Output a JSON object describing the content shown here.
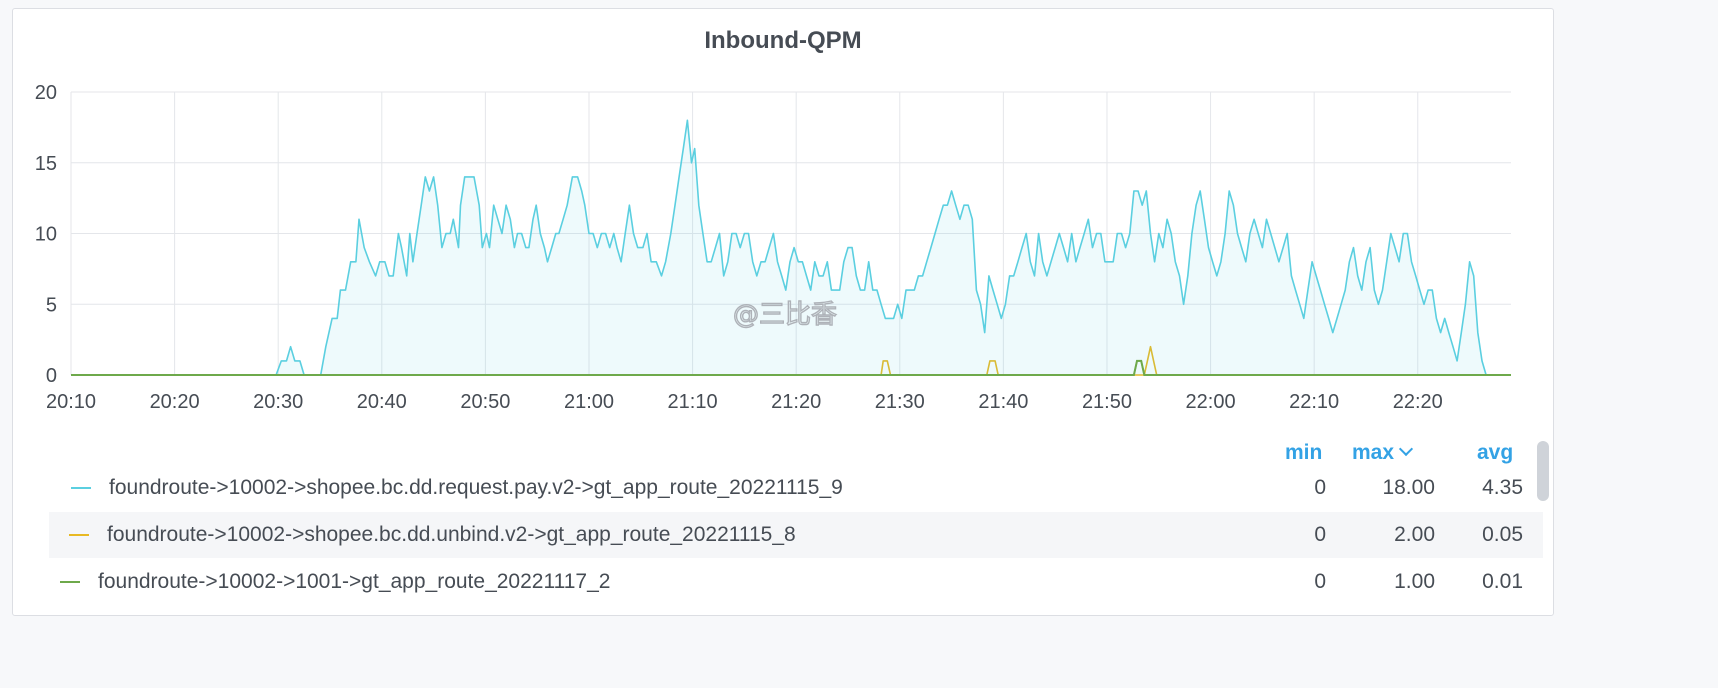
{
  "panel": {
    "title": "Inbound-QPM",
    "watermark": "@三比香"
  },
  "legend": {
    "headers": {
      "min": "min",
      "max": "max",
      "avg": "avg"
    },
    "rows": [
      {
        "name": "foundroute->10002->shopee.bc.dd.request.pay.v2->gt_app_route_20221115_9",
        "color": "#5bcfe0",
        "min": "0",
        "max": "18.00",
        "avg": "4.35"
      },
      {
        "name": "foundroute->10002->shopee.bc.dd.unbind.v2->gt_app_route_20221115_8",
        "color": "#e8b923",
        "min": "0",
        "max": "2.00",
        "avg": "0.05"
      },
      {
        "name": "foundroute->10002->1001->gt_app_route_20221117_2",
        "color": "#6ea94b",
        "min": "0",
        "max": "1.00",
        "avg": "0.01"
      }
    ]
  },
  "chart_data": {
    "type": "area",
    "title": "Inbound-QPM",
    "x_unit": "minutes since 20:10",
    "xlim": [
      0,
      139
    ],
    "ylim": [
      0,
      20
    ],
    "yticks": [
      0,
      5,
      10,
      15,
      20
    ],
    "xticks": [
      "20:10",
      "20:20",
      "20:30",
      "20:40",
      "20:50",
      "21:00",
      "21:10",
      "21:20",
      "21:30",
      "21:40",
      "21:50",
      "22:00",
      "22:10",
      "22:20"
    ],
    "grid": true,
    "series": [
      {
        "name": "foundroute->10002->shopee.bc.dd.request.pay.v2->gt_app_route_20221115_9",
        "color": "#5bcfe0",
        "fill": true,
        "points": [
          [
            0,
            0
          ],
          [
            19.8,
            0
          ],
          [
            20.3,
            1
          ],
          [
            20.8,
            1
          ],
          [
            21.2,
            2
          ],
          [
            21.6,
            1
          ],
          [
            22.1,
            1
          ],
          [
            22.5,
            0
          ],
          [
            24,
            0
          ],
          [
            24.1,
            0
          ],
          [
            24.6,
            2
          ],
          [
            25.2,
            4
          ],
          [
            25.7,
            4
          ],
          [
            26,
            6
          ],
          [
            26.5,
            6
          ],
          [
            27,
            8
          ],
          [
            27.5,
            8
          ],
          [
            27.8,
            11
          ],
          [
            28.3,
            9
          ],
          [
            28.8,
            8
          ],
          [
            29.4,
            7
          ],
          [
            29.8,
            8
          ],
          [
            30.3,
            8
          ],
          [
            30.7,
            7
          ],
          [
            31.1,
            7
          ],
          [
            31.6,
            10
          ],
          [
            31.9,
            9
          ],
          [
            32.4,
            7
          ],
          [
            32.7,
            10
          ],
          [
            33,
            8
          ],
          [
            33.4,
            10
          ],
          [
            33.8,
            12
          ],
          [
            34.2,
            14
          ],
          [
            34.6,
            13
          ],
          [
            35,
            14
          ],
          [
            35.4,
            12
          ],
          [
            35.8,
            9
          ],
          [
            36.2,
            10
          ],
          [
            36.6,
            10
          ],
          [
            36.9,
            11
          ],
          [
            37.4,
            9
          ],
          [
            37.6,
            12
          ],
          [
            38,
            14
          ],
          [
            38.5,
            14
          ],
          [
            38.9,
            14
          ],
          [
            39.4,
            12
          ],
          [
            39.7,
            9
          ],
          [
            40.1,
            10
          ],
          [
            40.4,
            9
          ],
          [
            40.8,
            12
          ],
          [
            41.2,
            11
          ],
          [
            41.6,
            10
          ],
          [
            42,
            12
          ],
          [
            42.4,
            11
          ],
          [
            42.8,
            9
          ],
          [
            43.1,
            10
          ],
          [
            43.5,
            10
          ],
          [
            43.9,
            9
          ],
          [
            44.2,
            9
          ],
          [
            44.6,
            11
          ],
          [
            44.9,
            12
          ],
          [
            45.3,
            10
          ],
          [
            45.7,
            9
          ],
          [
            46,
            8
          ],
          [
            46.4,
            9
          ],
          [
            46.8,
            10
          ],
          [
            47.1,
            10
          ],
          [
            47.5,
            11
          ],
          [
            47.9,
            12
          ],
          [
            48.4,
            14
          ],
          [
            48.9,
            14
          ],
          [
            49.3,
            13
          ],
          [
            49.6,
            12
          ],
          [
            50,
            10
          ],
          [
            50.4,
            10
          ],
          [
            50.8,
            9
          ],
          [
            51.2,
            10
          ],
          [
            51.6,
            10
          ],
          [
            52,
            9
          ],
          [
            52.4,
            10
          ],
          [
            52.7,
            9
          ],
          [
            53.1,
            8
          ],
          [
            53.5,
            10
          ],
          [
            53.9,
            12
          ],
          [
            54.3,
            10
          ],
          [
            54.7,
            9
          ],
          [
            55.2,
            9
          ],
          [
            55.6,
            10
          ],
          [
            56,
            8
          ],
          [
            56.5,
            8
          ],
          [
            57,
            7
          ],
          [
            57.4,
            8
          ],
          [
            57.9,
            10
          ],
          [
            58.3,
            12
          ],
          [
            58.7,
            14
          ],
          [
            59.1,
            16
          ],
          [
            59.5,
            18
          ],
          [
            59.9,
            15
          ],
          [
            60.2,
            16
          ],
          [
            60.6,
            12
          ],
          [
            61,
            10
          ],
          [
            61.4,
            8
          ],
          [
            61.8,
            8
          ],
          [
            62.2,
            9
          ],
          [
            62.6,
            10
          ],
          [
            63,
            7
          ],
          [
            63.4,
            8
          ],
          [
            63.8,
            10
          ],
          [
            64.2,
            10
          ],
          [
            64.6,
            9
          ],
          [
            65,
            10
          ],
          [
            65.4,
            10
          ],
          [
            65.8,
            8
          ],
          [
            66.2,
            7
          ],
          [
            66.6,
            8
          ],
          [
            67,
            8
          ],
          [
            67.4,
            9
          ],
          [
            67.8,
            10
          ],
          [
            68.2,
            8
          ],
          [
            68.6,
            7
          ],
          [
            69,
            6
          ],
          [
            69.4,
            8
          ],
          [
            69.8,
            9
          ],
          [
            70.2,
            8
          ],
          [
            70.6,
            8
          ],
          [
            71,
            7
          ],
          [
            71.4,
            6
          ],
          [
            71.8,
            8
          ],
          [
            72.2,
            7
          ],
          [
            72.6,
            7
          ],
          [
            73,
            8
          ],
          [
            73.4,
            6
          ],
          [
            73.8,
            6
          ],
          [
            74.2,
            6
          ],
          [
            74.6,
            8
          ],
          [
            75,
            9
          ],
          [
            75.4,
            9
          ],
          [
            75.8,
            7
          ],
          [
            76.2,
            6
          ],
          [
            76.6,
            6
          ],
          [
            77,
            8
          ],
          [
            77.4,
            6
          ],
          [
            77.8,
            6
          ],
          [
            78.2,
            5
          ],
          [
            78.6,
            4
          ],
          [
            79,
            4
          ],
          [
            79.4,
            4
          ],
          [
            79.8,
            5
          ],
          [
            80.2,
            4
          ],
          [
            80.6,
            6
          ],
          [
            81,
            6
          ],
          [
            81.4,
            6
          ],
          [
            81.8,
            7
          ],
          [
            82.2,
            7
          ],
          [
            82.6,
            8
          ],
          [
            83,
            9
          ],
          [
            83.4,
            10
          ],
          [
            83.8,
            11
          ],
          [
            84.2,
            12
          ],
          [
            84.6,
            12
          ],
          [
            85,
            13
          ],
          [
            85.4,
            12
          ],
          [
            85.8,
            11
          ],
          [
            86.2,
            12
          ],
          [
            86.6,
            12
          ],
          [
            87,
            11
          ],
          [
            87.4,
            6
          ],
          [
            87.8,
            5
          ],
          [
            88.2,
            3
          ],
          [
            88.6,
            7
          ],
          [
            89,
            6
          ],
          [
            89.4,
            5
          ],
          [
            89.8,
            4
          ],
          [
            90.2,
            5
          ],
          [
            90.6,
            7
          ],
          [
            91,
            7
          ],
          [
            91.4,
            8
          ],
          [
            91.8,
            9
          ],
          [
            92.2,
            10
          ],
          [
            92.6,
            8
          ],
          [
            93,
            7
          ],
          [
            93.4,
            10
          ],
          [
            93.8,
            8
          ],
          [
            94.2,
            7
          ],
          [
            94.6,
            8
          ],
          [
            95,
            9
          ],
          [
            95.4,
            10
          ],
          [
            95.8,
            9
          ],
          [
            96.2,
            8
          ],
          [
            96.6,
            10
          ],
          [
            97,
            8
          ],
          [
            97.4,
            9
          ],
          [
            97.8,
            10
          ],
          [
            98.2,
            11
          ],
          [
            98.6,
            9
          ],
          [
            99,
            10
          ],
          [
            99.4,
            10
          ],
          [
            99.8,
            8
          ],
          [
            100.2,
            8
          ],
          [
            100.6,
            8
          ],
          [
            101,
            10
          ],
          [
            101.4,
            10
          ],
          [
            101.8,
            9
          ],
          [
            102.2,
            10
          ],
          [
            102.6,
            13
          ],
          [
            103,
            13
          ],
          [
            103.4,
            12
          ],
          [
            103.8,
            13
          ],
          [
            104.2,
            10
          ],
          [
            104.6,
            8
          ],
          [
            105,
            10
          ],
          [
            105.4,
            9
          ],
          [
            105.8,
            11
          ],
          [
            106.2,
            10
          ],
          [
            106.6,
            8
          ],
          [
            107,
            7
          ],
          [
            107.4,
            5
          ],
          [
            107.8,
            7
          ],
          [
            108.2,
            10
          ],
          [
            108.6,
            12
          ],
          [
            109,
            13
          ],
          [
            109.4,
            11
          ],
          [
            109.8,
            9
          ],
          [
            110.2,
            8
          ],
          [
            110.6,
            7
          ],
          [
            111,
            8
          ],
          [
            111.4,
            10
          ],
          [
            111.8,
            13
          ],
          [
            112.2,
            12
          ],
          [
            112.6,
            10
          ],
          [
            113,
            9
          ],
          [
            113.4,
            8
          ],
          [
            113.8,
            10
          ],
          [
            114.2,
            11
          ],
          [
            114.6,
            10
          ],
          [
            115,
            9
          ],
          [
            115.4,
            11
          ],
          [
            115.8,
            10
          ],
          [
            116.2,
            9
          ],
          [
            116.6,
            8
          ],
          [
            117,
            9
          ],
          [
            117.4,
            10
          ],
          [
            117.8,
            7
          ],
          [
            118.2,
            6
          ],
          [
            118.6,
            5
          ],
          [
            119,
            4
          ],
          [
            119.4,
            6
          ],
          [
            119.8,
            8
          ],
          [
            120.2,
            7
          ],
          [
            120.6,
            6
          ],
          [
            121,
            5
          ],
          [
            121.4,
            4
          ],
          [
            121.8,
            3
          ],
          [
            122.2,
            4
          ],
          [
            122.6,
            5
          ],
          [
            123,
            6
          ],
          [
            123.4,
            8
          ],
          [
            123.8,
            9
          ],
          [
            124.2,
            7
          ],
          [
            124.6,
            6
          ],
          [
            125,
            8
          ],
          [
            125.4,
            9
          ],
          [
            125.8,
            6
          ],
          [
            126.2,
            5
          ],
          [
            126.6,
            6
          ],
          [
            127,
            8
          ],
          [
            127.4,
            10
          ],
          [
            127.8,
            9
          ],
          [
            128.2,
            8
          ],
          [
            128.6,
            10
          ],
          [
            129,
            10
          ],
          [
            129.4,
            8
          ],
          [
            129.8,
            7
          ],
          [
            130.2,
            6
          ],
          [
            130.6,
            5
          ],
          [
            131,
            6
          ],
          [
            131.4,
            6
          ],
          [
            131.8,
            4
          ],
          [
            132.2,
            3
          ],
          [
            132.6,
            4
          ],
          [
            133,
            3
          ],
          [
            133.4,
            2
          ],
          [
            133.8,
            1
          ],
          [
            134.2,
            3
          ],
          [
            134.6,
            5
          ],
          [
            135,
            8
          ],
          [
            135.4,
            7
          ],
          [
            135.8,
            3
          ],
          [
            136.2,
            1
          ],
          [
            136.6,
            0
          ],
          [
            139,
            0
          ]
        ]
      },
      {
        "name": "foundroute->10002->shopee.bc.dd.unbind.v2->gt_app_route_20221115_8",
        "color": "#e8b923",
        "fill": false,
        "points": [
          [
            0,
            0
          ],
          [
            78.2,
            0
          ],
          [
            78.4,
            1
          ],
          [
            78.8,
            1
          ],
          [
            79.1,
            0
          ],
          [
            88.4,
            0
          ],
          [
            88.7,
            1
          ],
          [
            89.2,
            1
          ],
          [
            89.5,
            0
          ],
          [
            103.6,
            0
          ],
          [
            103.9,
            1
          ],
          [
            104.2,
            2
          ],
          [
            104.5,
            1
          ],
          [
            104.8,
            0
          ],
          [
            139,
            0
          ]
        ]
      },
      {
        "name": "foundroute->10002->1001->gt_app_route_20221117_2",
        "color": "#6ea94b",
        "fill": false,
        "points": [
          [
            0,
            0
          ],
          [
            102.6,
            0
          ],
          [
            102.9,
            1
          ],
          [
            103.3,
            1
          ],
          [
            103.6,
            0
          ],
          [
            139,
            0
          ]
        ]
      }
    ]
  }
}
